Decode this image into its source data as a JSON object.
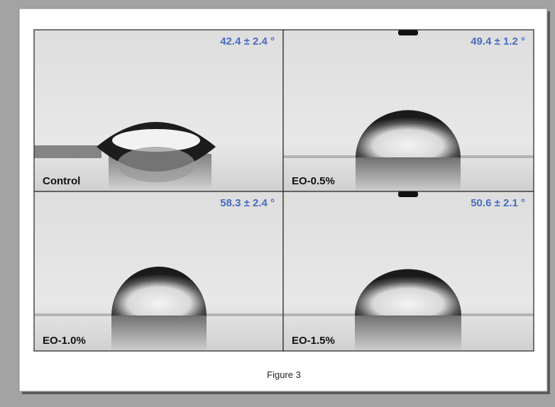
{
  "panels": [
    {
      "label": "Control",
      "angle": "42.4 ± 2.4 °"
    },
    {
      "label": "EO-0.5%",
      "angle": "49.4 ± 1.2 °"
    },
    {
      "label": "EO-1.0%",
      "angle": "58.3 ± 2.4 °"
    },
    {
      "label": "EO-1.5%",
      "angle": "50.6 ± 2.1 °"
    }
  ],
  "caption": "Figure 3"
}
